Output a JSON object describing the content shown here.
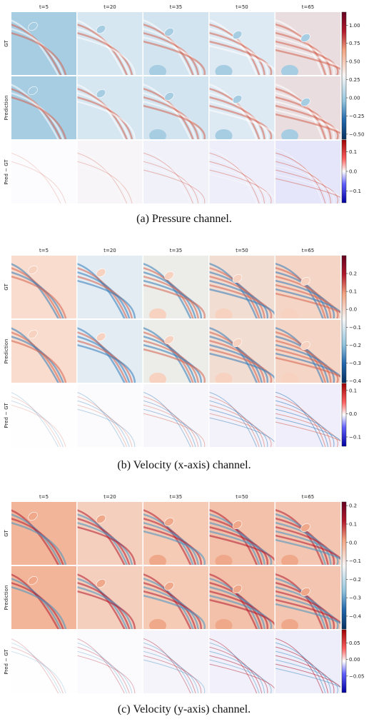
{
  "panels": [
    {
      "caption": "(a) Pressure channel.",
      "column_titles": [
        "t=5",
        "t=20",
        "t=35",
        "t=50",
        "t=65"
      ],
      "row_labels": [
        "GT",
        "Prediction",
        "Pred − GT"
      ],
      "colorbars": [
        {
          "lim": [
            -0.57,
            1.18
          ],
          "ticks": [
            {
              "value": 1,
              "label": "1.00"
            },
            {
              "value": 0.75,
              "label": "0.75"
            },
            {
              "value": 0.5,
              "label": "0.50"
            },
            {
              "value": 0.25,
              "label": "0.25"
            },
            {
              "value": 0,
              "label": "0.00"
            },
            {
              "value": -0.25,
              "label": "−0.25"
            },
            {
              "value": -0.5,
              "label": "−0.50"
            }
          ]
        },
        {
          "lim": [
            -0.16,
            0.16
          ],
          "ticks": [
            {
              "value": 0.1,
              "label": "0.1"
            },
            {
              "value": 0,
              "label": "0.0"
            },
            {
              "value": -0.1,
              "label": "−0.1"
            }
          ]
        }
      ]
    },
    {
      "caption": "(b) Velocity (x-axis) channel.",
      "column_titles": [
        "t=5",
        "t=20",
        "t=35",
        "t=50",
        "t=65"
      ],
      "row_labels": [
        "GT",
        "Prediction",
        "Pred − GT"
      ],
      "colorbars": [
        {
          "lim": [
            -0.41,
            0.3
          ],
          "ticks": [
            {
              "value": 0.2,
              "label": "0.2"
            },
            {
              "value": 0.1,
              "label": "0.1"
            },
            {
              "value": 0,
              "label": "0.0"
            },
            {
              "value": -0.1,
              "label": "−0.1"
            },
            {
              "value": -0.2,
              "label": "−0.2"
            },
            {
              "value": -0.3,
              "label": "−0.3"
            },
            {
              "value": -0.4,
              "label": "−0.4"
            }
          ]
        },
        {
          "lim": [
            -0.14,
            0.13
          ],
          "ticks": [
            {
              "value": 0.1,
              "label": "0.1"
            },
            {
              "value": 0,
              "label": "0.0"
            },
            {
              "value": -0.1,
              "label": "−0.1"
            }
          ]
        }
      ]
    },
    {
      "caption": "(c) Velocity (y-axis) channel.",
      "column_titles": [
        "t=5",
        "t=20",
        "t=35",
        "t=50",
        "t=65"
      ],
      "row_labels": [
        "GT",
        "Prediction",
        "Pred − GT"
      ],
      "colorbars": [
        {
          "lim": [
            -0.47,
            0.22
          ],
          "ticks": [
            {
              "value": 0.2,
              "label": "0.2"
            },
            {
              "value": 0.1,
              "label": "0.1"
            },
            {
              "value": 0,
              "label": "0.0"
            },
            {
              "value": -0.1,
              "label": "−0.1"
            },
            {
              "value": -0.2,
              "label": "−0.2"
            },
            {
              "value": -0.3,
              "label": "−0.3"
            },
            {
              "value": -0.4,
              "label": "−0.4"
            }
          ]
        },
        {
          "lim": [
            -0.1,
            0.09
          ],
          "ticks": [
            {
              "value": 0.05,
              "label": "0.05"
            },
            {
              "value": 0,
              "label": "0.00"
            },
            {
              "value": -0.05,
              "label": "−0.05"
            }
          ]
        }
      ]
    }
  ]
}
